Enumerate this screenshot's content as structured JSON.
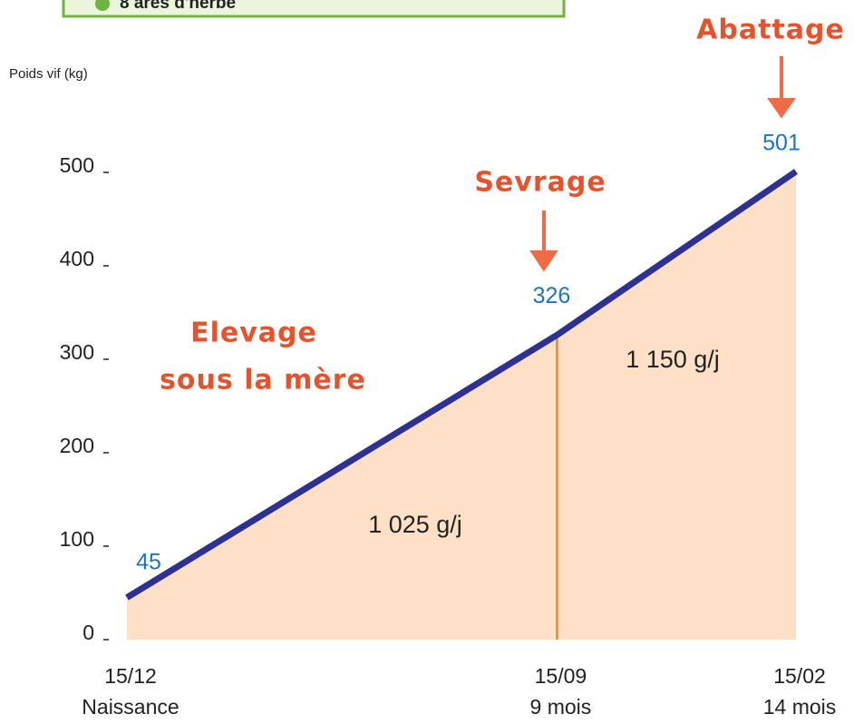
{
  "header": {
    "text": "8 ares d'herbe"
  },
  "chart_data": {
    "type": "area-line",
    "ylabel": "Poids vif (kg)",
    "x": [
      0,
      9,
      14
    ],
    "xlim": [
      0,
      14
    ],
    "xticks": [
      {
        "value": 0,
        "label": "15/12"
      },
      {
        "value": 9,
        "label": "15/09"
      },
      {
        "value": 14,
        "label": "15/02"
      }
    ],
    "xtick_sublabels": [
      "Naissance",
      "9 mois",
      "14 mois"
    ],
    "values": [
      45,
      326,
      501
    ],
    "color": "#2e3192",
    "fill": "#fde0c5",
    "ylim": [
      0,
      500
    ],
    "yticks": [
      0,
      100,
      200,
      300,
      400,
      500
    ],
    "annotations": [
      "Abattage",
      "Sevrage",
      "Elevage",
      "sous la mère",
      "1 025 g/j",
      "1 150 g/j"
    ]
  }
}
